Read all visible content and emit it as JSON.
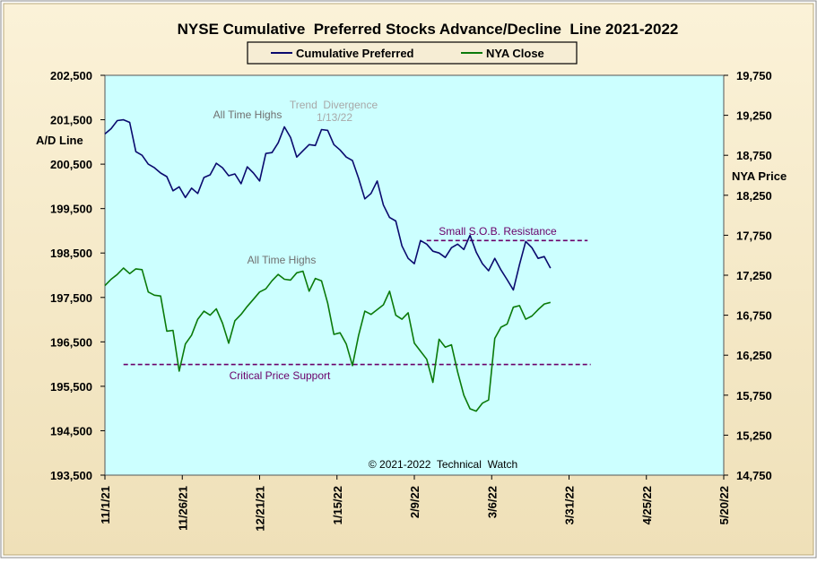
{
  "chart_data": {
    "type": "line",
    "title": "NYSE Cumulative  Preferred Stocks Advance/Decline  Line 2021-2022",
    "legend_position": "top-center",
    "legend": [
      {
        "label": "Cumulative Preferred",
        "color": "#0a0a6e"
      },
      {
        "label": "NYA Close",
        "color": "#0a7a0a"
      }
    ],
    "y_left": {
      "label": "A/D Line",
      "range": [
        193500,
        202500
      ],
      "ticks": [
        "193,500",
        "194,500",
        "195,500",
        "196,500",
        "197,500",
        "198,500",
        "199,500",
        "200,500",
        "201,500",
        "202,500"
      ]
    },
    "y_right": {
      "label": "NYA Price",
      "range": [
        14750,
        19750
      ],
      "ticks": [
        "14,750",
        "15,250",
        "15,750",
        "16,250",
        "16,750",
        "17,250",
        "17,750",
        "18,250",
        "18,750",
        "19,250",
        "19,750"
      ]
    },
    "x_axis": {
      "range": [
        "2021-11-01",
        "2022-05-20"
      ],
      "ticks": [
        "11/1/21",
        "11/26/21",
        "12/21/21",
        "1/15/22",
        "2/9/22",
        "3/6/22",
        "3/31/22",
        "4/25/22",
        "5/20/22"
      ]
    },
    "grid": false,
    "plot_background": "#ccffff",
    "annotations": {
      "ath_top": "All Time Highs",
      "divergence_line1": "Trend  Divergence",
      "divergence_line2": "1/13/22",
      "ath_bottom": "All Time Highs",
      "resistance": "Small S.O.B. Resistance",
      "support": "Critical Price Support",
      "copyright": "© 2021-2022  Technical  Watch"
    },
    "reference_lines": [
      {
        "name": "Small S.O.B. Resistance",
        "axis": "left",
        "value": 198780,
        "x_start": "2022-02-13",
        "x_end": "2022-04-06",
        "color": "#6a006a"
      },
      {
        "name": "Critical Price Support",
        "axis": "left",
        "value": 195990,
        "x_start": "2021-11-07",
        "x_end": "2022-04-07",
        "color": "#6a006a"
      }
    ],
    "series": [
      {
        "name": "Cumulative Preferred",
        "axis": "left",
        "color": "#0a0a6e",
        "x": [
          "2021-11-01",
          "2021-11-03",
          "2021-11-05",
          "2021-11-07",
          "2021-11-09",
          "2021-11-11",
          "2021-11-13",
          "2021-11-15",
          "2021-11-17",
          "2021-11-19",
          "2021-11-21",
          "2021-11-23",
          "2021-11-25",
          "2021-11-27",
          "2021-11-29",
          "2021-12-01",
          "2021-12-03",
          "2021-12-05",
          "2021-12-07",
          "2021-12-09",
          "2021-12-11",
          "2021-12-13",
          "2021-12-15",
          "2021-12-17",
          "2021-12-19",
          "2021-12-21",
          "2021-12-23",
          "2021-12-25",
          "2021-12-27",
          "2021-12-29",
          "2021-12-31",
          "2022-01-02",
          "2022-01-04",
          "2022-01-06",
          "2022-01-08",
          "2022-01-10",
          "2022-01-12",
          "2022-01-14",
          "2022-01-16",
          "2022-01-18",
          "2022-01-20",
          "2022-01-22",
          "2022-01-24",
          "2022-01-26",
          "2022-01-28",
          "2022-01-30",
          "2022-02-01",
          "2022-02-03",
          "2022-02-05",
          "2022-02-07",
          "2022-02-09",
          "2022-02-11",
          "2022-02-13",
          "2022-02-15",
          "2022-02-17",
          "2022-02-19",
          "2022-02-21",
          "2022-02-23",
          "2022-02-25",
          "2022-02-27",
          "2022-03-01",
          "2022-03-03",
          "2022-03-05",
          "2022-03-07",
          "2022-03-09",
          "2022-03-11",
          "2022-03-13",
          "2022-03-15",
          "2022-03-17",
          "2022-03-19",
          "2022-03-21",
          "2022-03-23",
          "2022-03-25"
        ],
        "values": [
          201180,
          201300,
          201480,
          201500,
          201440,
          200780,
          200700,
          200500,
          200420,
          200300,
          200220,
          199900,
          199990,
          199750,
          199960,
          199840,
          200200,
          200260,
          200520,
          200420,
          200240,
          200280,
          200060,
          200440,
          200300,
          200120,
          200740,
          200760,
          200980,
          201340,
          201100,
          200660,
          200800,
          200940,
          200920,
          201280,
          201260,
          200940,
          200820,
          200660,
          200580,
          200180,
          199720,
          199840,
          200120,
          199580,
          199300,
          199220,
          198660,
          198380,
          198260,
          198780,
          198700,
          198540,
          198500,
          198400,
          198620,
          198700,
          198580,
          198900,
          198520,
          198260,
          198100,
          198380,
          198120,
          197900,
          197670,
          198240,
          198760,
          198620,
          198380,
          198420,
          198160
        ]
      },
      {
        "name": "NYA Close",
        "axis": "right",
        "color": "#0a7a0a",
        "x": [
          "2021-11-01",
          "2021-11-03",
          "2021-11-05",
          "2021-11-07",
          "2021-11-09",
          "2021-11-11",
          "2021-11-13",
          "2021-11-15",
          "2021-11-17",
          "2021-11-19",
          "2021-11-21",
          "2021-11-23",
          "2021-11-25",
          "2021-11-27",
          "2021-11-29",
          "2021-12-01",
          "2021-12-03",
          "2021-12-05",
          "2021-12-07",
          "2021-12-09",
          "2021-12-11",
          "2021-12-13",
          "2021-12-15",
          "2021-12-17",
          "2021-12-19",
          "2021-12-21",
          "2021-12-23",
          "2021-12-25",
          "2021-12-27",
          "2021-12-29",
          "2021-12-31",
          "2022-01-02",
          "2022-01-04",
          "2022-01-06",
          "2022-01-08",
          "2022-01-10",
          "2022-01-12",
          "2022-01-14",
          "2022-01-16",
          "2022-01-18",
          "2022-01-20",
          "2022-01-22",
          "2022-01-24",
          "2022-01-26",
          "2022-01-28",
          "2022-01-30",
          "2022-02-01",
          "2022-02-03",
          "2022-02-05",
          "2022-02-07",
          "2022-02-09",
          "2022-02-11",
          "2022-02-13",
          "2022-02-15",
          "2022-02-17",
          "2022-02-19",
          "2022-02-21",
          "2022-02-23",
          "2022-02-25",
          "2022-02-27",
          "2022-03-01",
          "2022-03-03",
          "2022-03-05",
          "2022-03-07",
          "2022-03-09",
          "2022-03-11",
          "2022-03-13",
          "2022-03-15",
          "2022-03-17",
          "2022-03-19",
          "2022-03-21",
          "2022-03-23",
          "2022-03-25"
        ],
        "values": [
          17120,
          17200,
          17260,
          17340,
          17270,
          17330,
          17320,
          17040,
          17000,
          16990,
          16550,
          16560,
          16050,
          16390,
          16500,
          16700,
          16800,
          16750,
          16830,
          16650,
          16400,
          16680,
          16760,
          16860,
          16950,
          17040,
          17080,
          17180,
          17260,
          17200,
          17190,
          17280,
          17300,
          17050,
          17210,
          17180,
          16900,
          16510,
          16530,
          16390,
          16120,
          16500,
          16800,
          16760,
          16820,
          16880,
          17050,
          16750,
          16700,
          16780,
          16400,
          16300,
          16200,
          15910,
          16450,
          16350,
          16380,
          16040,
          15750,
          15580,
          15550,
          15650,
          15690,
          16460,
          16600,
          16640,
          16850,
          16870,
          16700,
          16740,
          16820,
          16890,
          16910
        ]
      }
    ]
  }
}
